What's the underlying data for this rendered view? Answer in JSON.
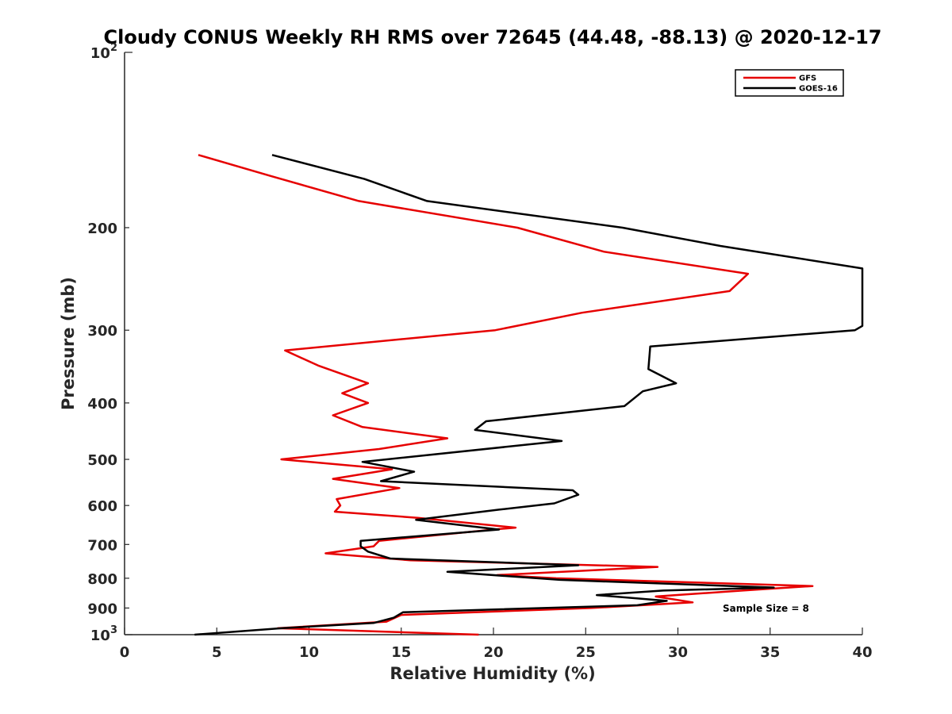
{
  "chart_data": {
    "type": "line",
    "title": "Cloudy CONUS Weekly RH RMS over 72645 (44.48, -88.13) @ 2020-12-17",
    "xlabel": "Relative Humidity (%)",
    "ylabel": "Pressure (mb)",
    "xlim": [
      0,
      40
    ],
    "ylim": [
      100,
      1000
    ],
    "yscale": "log",
    "y_reversed": true,
    "grid": false,
    "legend_position": "top-right",
    "xticks": [
      "0",
      "5",
      "10",
      "15",
      "20",
      "25",
      "30",
      "35",
      "40"
    ],
    "yticks": [
      {
        "value": 100,
        "base": "10",
        "exp": "2"
      },
      {
        "value": 200,
        "label": "200"
      },
      {
        "value": 300,
        "label": "300"
      },
      {
        "value": 400,
        "label": "400"
      },
      {
        "value": 500,
        "label": "500"
      },
      {
        "value": 600,
        "label": "600"
      },
      {
        "value": 700,
        "label": "700"
      },
      {
        "value": 800,
        "label": "800"
      },
      {
        "value": 900,
        "label": "900"
      },
      {
        "value": 1000,
        "base": "10",
        "exp": "3"
      }
    ],
    "annotation": "Sample Size = 8",
    "series": [
      {
        "name": "GFS",
        "color": "#e60000",
        "points": [
          [
            4.0,
            150
          ],
          [
            7.9,
            163
          ],
          [
            12.7,
            180
          ],
          [
            21.3,
            200
          ],
          [
            26.0,
            220
          ],
          [
            33.8,
            240
          ],
          [
            32.8,
            257
          ],
          [
            24.8,
            280
          ],
          [
            20.1,
            300
          ],
          [
            8.7,
            325
          ],
          [
            10.5,
            345
          ],
          [
            13.2,
            370
          ],
          [
            11.8,
            385
          ],
          [
            13.2,
            400
          ],
          [
            11.3,
            420
          ],
          [
            12.9,
            440
          ],
          [
            17.5,
            460
          ],
          [
            13.8,
            480
          ],
          [
            8.5,
            500
          ],
          [
            14.5,
            520
          ],
          [
            11.3,
            540
          ],
          [
            14.9,
            560
          ],
          [
            11.5,
            585
          ],
          [
            11.7,
            600
          ],
          [
            11.4,
            615
          ],
          [
            15.9,
            630
          ],
          [
            21.2,
            655
          ],
          [
            20.0,
            660
          ],
          [
            13.8,
            690
          ],
          [
            13.5,
            705
          ],
          [
            10.9,
            725
          ],
          [
            15.5,
            745
          ],
          [
            28.9,
            765
          ],
          [
            20.2,
            790
          ],
          [
            23.4,
            800
          ],
          [
            37.3,
            825
          ],
          [
            33.5,
            840
          ],
          [
            28.8,
            860
          ],
          [
            30.8,
            880
          ],
          [
            25.3,
            900
          ],
          [
            15.0,
            925
          ],
          [
            14.2,
            950
          ],
          [
            8.3,
            975
          ],
          [
            19.2,
            1000
          ]
        ]
      },
      {
        "name": "GOES-16",
        "color": "#000000",
        "points": [
          [
            8.0,
            150
          ],
          [
            13.0,
            165
          ],
          [
            16.4,
            180
          ],
          [
            27.0,
            200
          ],
          [
            32.3,
            215
          ],
          [
            40.0,
            235
          ],
          [
            40.0,
            295
          ],
          [
            39.6,
            300
          ],
          [
            28.5,
            320
          ],
          [
            28.4,
            350
          ],
          [
            29.9,
            370
          ],
          [
            28.1,
            382
          ],
          [
            27.1,
            405
          ],
          [
            19.6,
            430
          ],
          [
            19.0,
            445
          ],
          [
            23.7,
            465
          ],
          [
            12.9,
            505
          ],
          [
            15.7,
            525
          ],
          [
            13.9,
            545
          ],
          [
            24.3,
            565
          ],
          [
            24.6,
            575
          ],
          [
            23.3,
            595
          ],
          [
            20.3,
            610
          ],
          [
            15.8,
            635
          ],
          [
            20.3,
            660
          ],
          [
            12.8,
            690
          ],
          [
            12.8,
            705
          ],
          [
            13.2,
            720
          ],
          [
            14.4,
            740
          ],
          [
            24.6,
            760
          ],
          [
            17.5,
            780
          ],
          [
            23.6,
            805
          ],
          [
            35.2,
            830
          ],
          [
            29.2,
            840
          ],
          [
            25.6,
            855
          ],
          [
            29.4,
            875
          ],
          [
            27.8,
            890
          ],
          [
            15.1,
            915
          ],
          [
            14.6,
            935
          ],
          [
            13.5,
            955
          ],
          [
            8.5,
            975
          ],
          [
            3.8,
            1000
          ]
        ]
      }
    ]
  }
}
